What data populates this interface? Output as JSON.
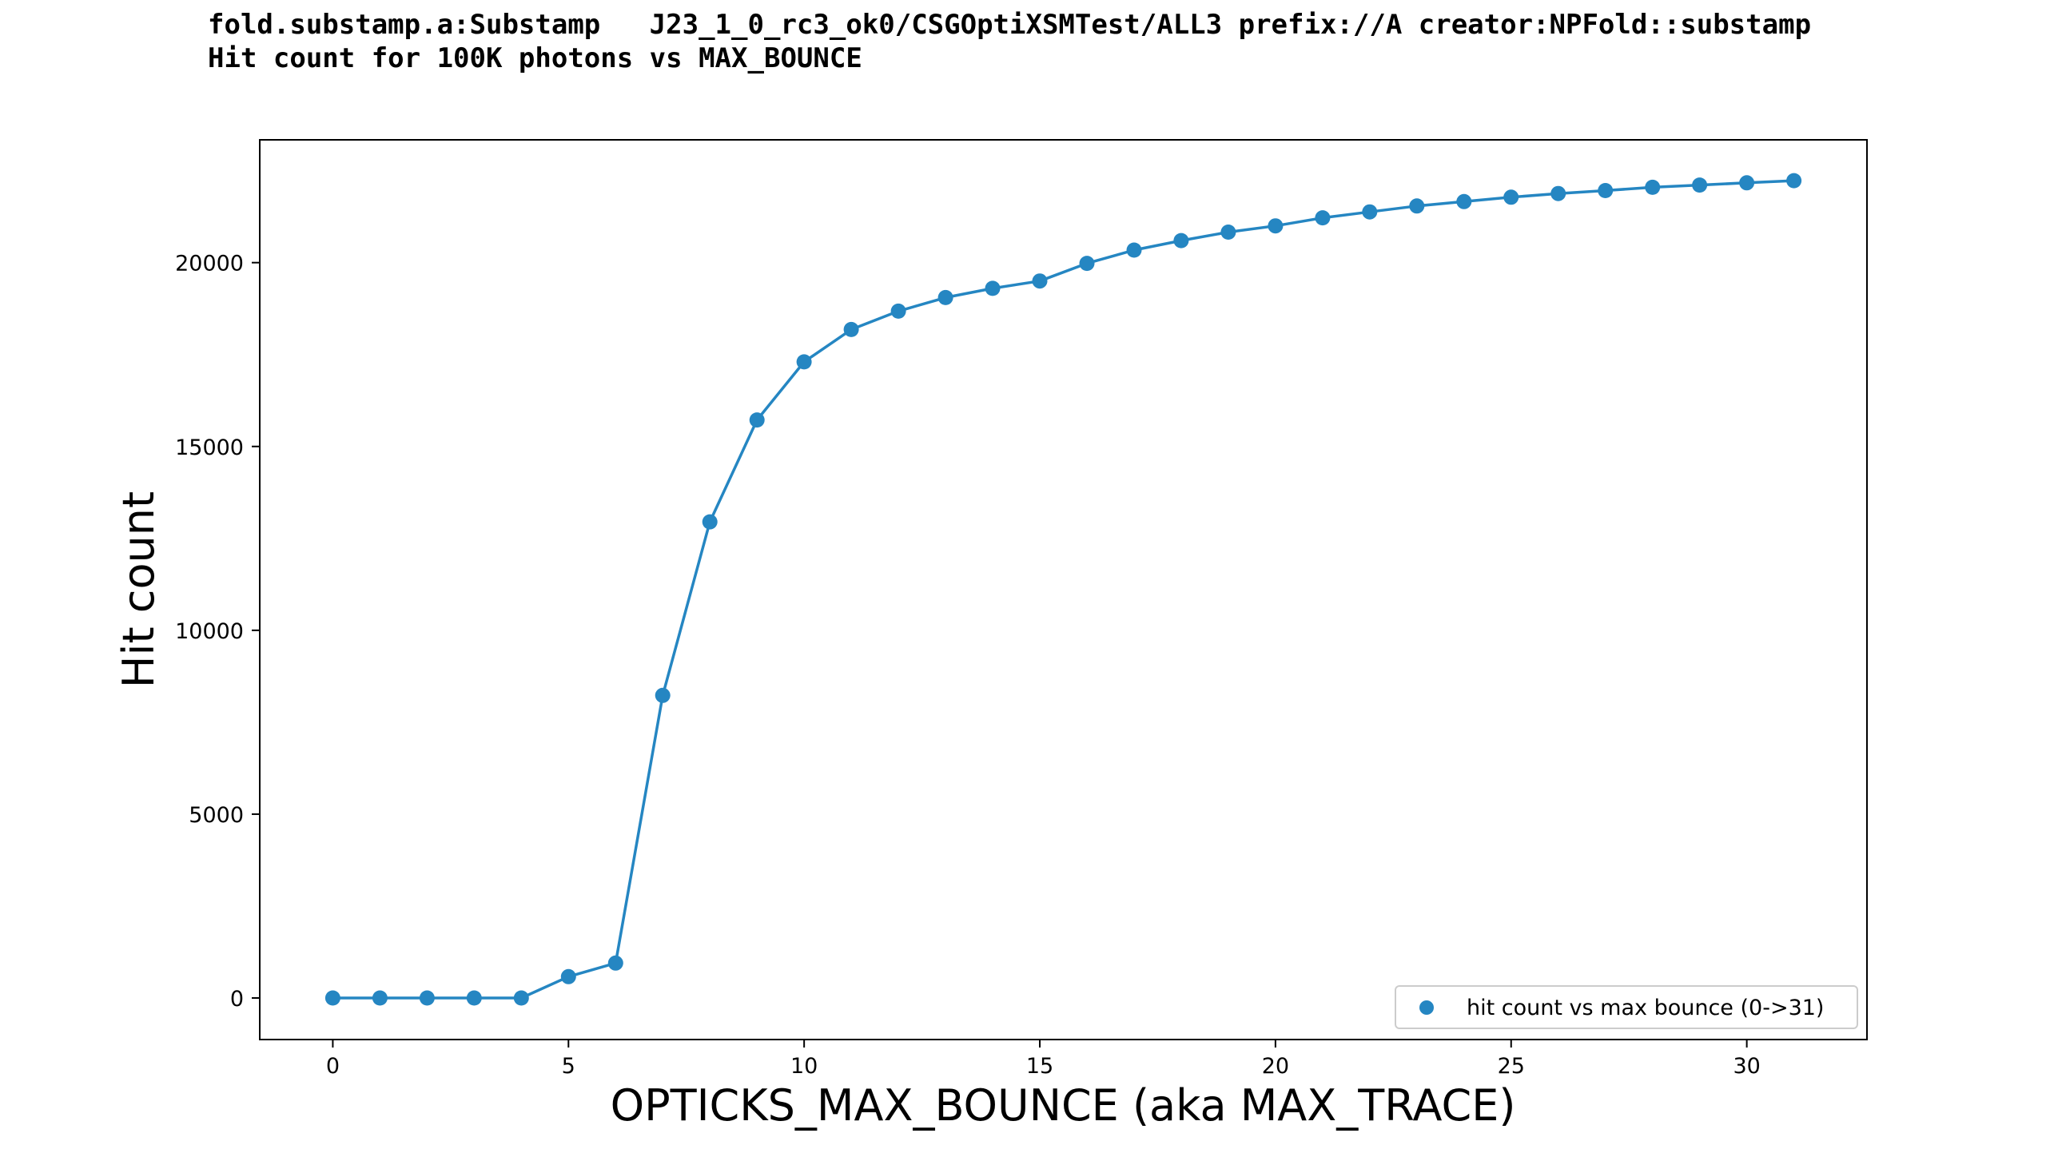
{
  "chart_data": {
    "type": "line",
    "title": "fold.substamp.a:Substamp   J23_1_0_rc3_ok0/CSGOptiXSMTest/ALL3 prefix://A creator:NPFold::substamp",
    "subtitle": "Hit count for 100K photons vs MAX_BOUNCE",
    "xlabel": "OPTICKS_MAX_BOUNCE (aka MAX_TRACE)",
    "ylabel": "Hit count",
    "xlim": [
      -1.55,
      32.55
    ],
    "ylim": [
      -1130,
      23340
    ],
    "xticks": [
      0,
      5,
      10,
      15,
      20,
      25,
      30
    ],
    "yticks": [
      0,
      5000,
      10000,
      15000,
      20000
    ],
    "grid": false,
    "legend_position": "lower-right",
    "color": "#2586c2",
    "series": [
      {
        "name": "hit count vs max bounce (0->31)",
        "x": [
          0,
          1,
          2,
          3,
          4,
          5,
          6,
          7,
          8,
          9,
          10,
          11,
          12,
          13,
          14,
          15,
          16,
          17,
          18,
          19,
          20,
          21,
          22,
          23,
          24,
          25,
          26,
          27,
          28,
          29,
          30,
          31
        ],
        "y": [
          0,
          0,
          0,
          0,
          0,
          580,
          950,
          8230,
          12950,
          15720,
          17300,
          18180,
          18680,
          19050,
          19300,
          19500,
          19980,
          20340,
          20600,
          20830,
          21000,
          21220,
          21380,
          21540,
          21660,
          21780,
          21880,
          21960,
          22050,
          22110,
          22170,
          22230
        ]
      }
    ]
  }
}
